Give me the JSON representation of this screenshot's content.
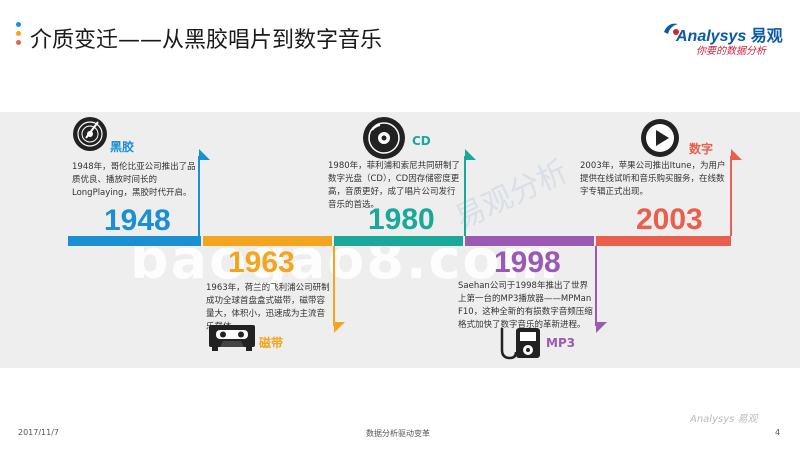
{
  "title": "介质变迁——从黑胶唱片到数字音乐",
  "logo": {
    "brand": "Analysys",
    "brand_cn": "易观",
    "tagline": "你要的数据分析"
  },
  "watermark": "baogao8.com",
  "watermark_small": "易观分析",
  "colors": {
    "blue": "#1a8fd1",
    "orange": "#f4a51f",
    "teal": "#1aa89b",
    "purple": "#9b59b6",
    "red": "#e8604c",
    "dark": "#222222"
  },
  "timeline": [
    {
      "year": "1948",
      "label": "黑胶",
      "icon": "vinyl-record-icon",
      "desc": "1948年，哥伦比亚公司推出了品质优良、播放时间长的LongPlaying，黑胶时代开启。"
    },
    {
      "year": "1963",
      "label": "磁带",
      "icon": "cassette-tape-icon",
      "desc": "1963年，荷兰的飞利浦公司研制成功全球首盘盒式磁带，磁带容量大，体积小，迅速成为主流音乐载体。"
    },
    {
      "year": "1980",
      "label": "CD",
      "icon": "cd-disc-icon",
      "desc": "1980年，菲利浦和索尼共同研制了数字光盘（CD），CD因存储密度更高，音质更好，成了唱片公司发行音乐的首选。"
    },
    {
      "year": "1998",
      "label": "MP3",
      "icon": "mp3-player-icon",
      "desc": "Saehan公司于1998年推出了世界上第一台的MP3播放器——MPMan F10，这种全新的有损数字音频压缩格式加快了数字音乐的革新进程。"
    },
    {
      "year": "2003",
      "label": "数字",
      "icon": "play-button-icon",
      "desc": "2003年，苹果公司推出Itune，为用户提供在线试听和音乐购买服务，在线数字专辑正式出现。"
    }
  ],
  "footer": {
    "date": "2017/11/7",
    "center": "数据分析驱动变革",
    "page": "4",
    "watermark": "Analysys 易观"
  }
}
